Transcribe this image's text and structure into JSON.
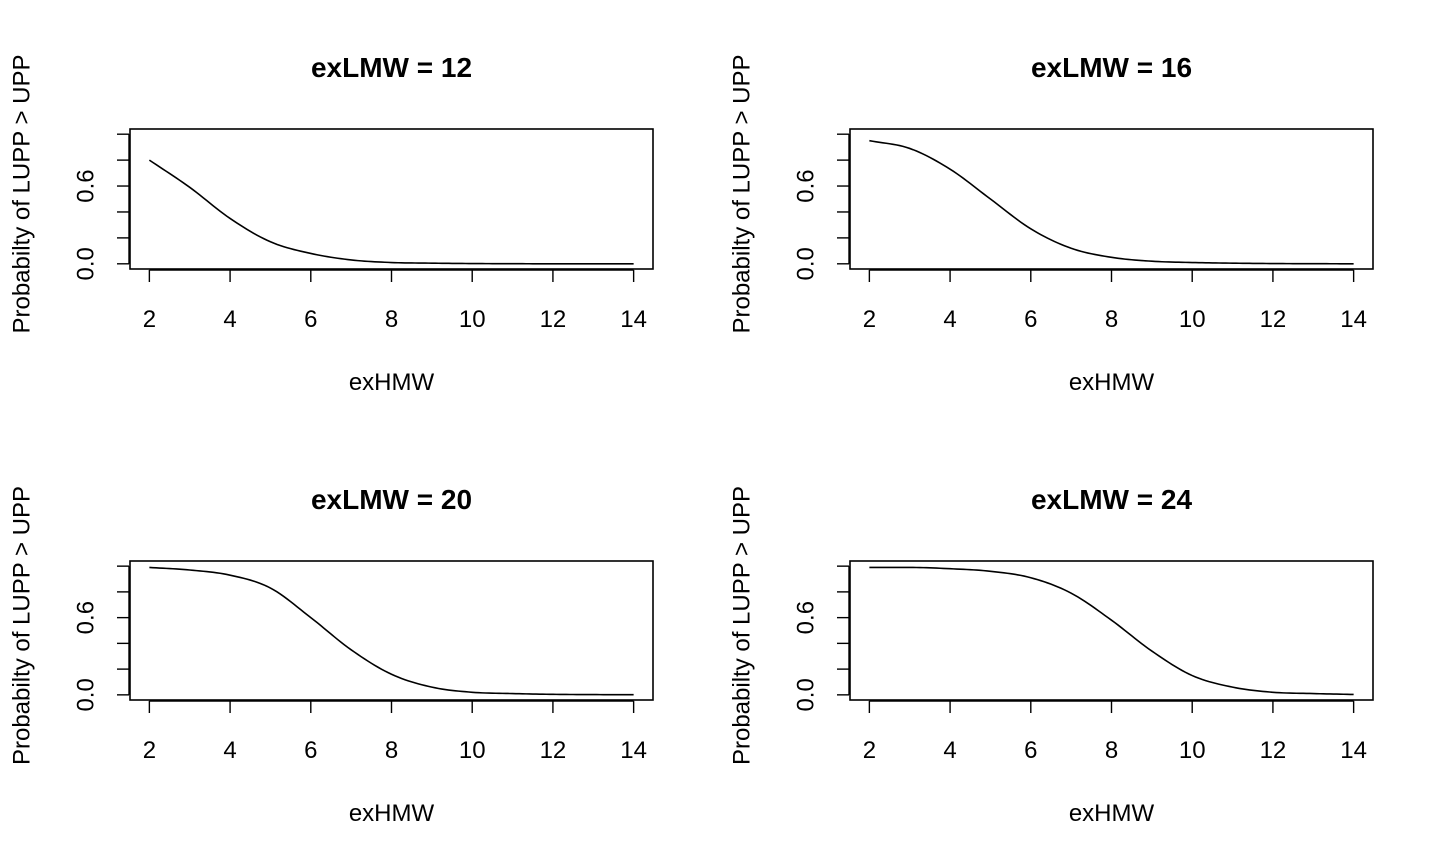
{
  "chart_data": [
    {
      "type": "line",
      "title": "exLMW = 12",
      "xlabel": "exHMW",
      "ylabel": "Probabilty of LUPP > UPP",
      "xlim": [
        2,
        14
      ],
      "ylim": [
        0,
        1
      ],
      "xticks": [
        2,
        4,
        6,
        8,
        10,
        12,
        14
      ],
      "yticks": [
        0,
        0.2,
        0.4,
        0.6,
        0.8,
        1.0
      ],
      "ytick_labels": [
        "0.0",
        "",
        "",
        "0.6",
        "",
        ""
      ],
      "grid": false,
      "x": [
        2,
        3,
        4,
        5,
        6,
        7,
        8,
        9,
        10,
        11,
        12,
        13,
        14
      ],
      "y": [
        0.8,
        0.59,
        0.35,
        0.17,
        0.08,
        0.03,
        0.01,
        0.005,
        0.002,
        0.001,
        0.0,
        0.0,
        0.0
      ]
    },
    {
      "type": "line",
      "title": "exLMW = 16",
      "xlabel": "exHMW",
      "ylabel": "Probabilty of LUPP > UPP",
      "xlim": [
        2,
        14
      ],
      "ylim": [
        0,
        1
      ],
      "xticks": [
        2,
        4,
        6,
        8,
        10,
        12,
        14
      ],
      "yticks": [
        0,
        0.2,
        0.4,
        0.6,
        0.8,
        1.0
      ],
      "ytick_labels": [
        "0.0",
        "",
        "",
        "0.6",
        "",
        ""
      ],
      "grid": false,
      "x": [
        2,
        3,
        4,
        5,
        6,
        7,
        8,
        9,
        10,
        11,
        12,
        13,
        14
      ],
      "y": [
        0.95,
        0.89,
        0.73,
        0.5,
        0.27,
        0.12,
        0.05,
        0.02,
        0.01,
        0.005,
        0.002,
        0.001,
        0.0
      ]
    },
    {
      "type": "line",
      "title": "exLMW = 20",
      "xlabel": "exHMW",
      "ylabel": "Probabilty of LUPP > UPP",
      "xlim": [
        2,
        14
      ],
      "ylim": [
        0,
        1
      ],
      "xticks": [
        2,
        4,
        6,
        8,
        10,
        12,
        14
      ],
      "yticks": [
        0,
        0.2,
        0.4,
        0.6,
        0.8,
        1.0
      ],
      "ytick_labels": [
        "0.0",
        "",
        "",
        "0.6",
        "",
        ""
      ],
      "grid": false,
      "x": [
        2,
        3,
        4,
        5,
        6,
        7,
        8,
        9,
        10,
        11,
        12,
        13,
        14
      ],
      "y": [
        0.99,
        0.97,
        0.93,
        0.83,
        0.6,
        0.35,
        0.16,
        0.06,
        0.02,
        0.01,
        0.004,
        0.002,
        0.001
      ]
    },
    {
      "type": "line",
      "title": "exLMW = 24",
      "xlabel": "exHMW",
      "ylabel": "Probabilty of LUPP > UPP",
      "xlim": [
        2,
        14
      ],
      "ylim": [
        0,
        1
      ],
      "xticks": [
        2,
        4,
        6,
        8,
        10,
        12,
        14
      ],
      "yticks": [
        0,
        0.2,
        0.4,
        0.6,
        0.8,
        1.0
      ],
      "ytick_labels": [
        "0.0",
        "",
        "",
        "0.6",
        "",
        ""
      ],
      "grid": false,
      "x": [
        2,
        3,
        4,
        5,
        6,
        7,
        8,
        9,
        10,
        11,
        12,
        13,
        14
      ],
      "y": [
        0.99,
        0.99,
        0.98,
        0.96,
        0.91,
        0.79,
        0.58,
        0.34,
        0.15,
        0.06,
        0.02,
        0.01,
        0.003
      ]
    }
  ]
}
